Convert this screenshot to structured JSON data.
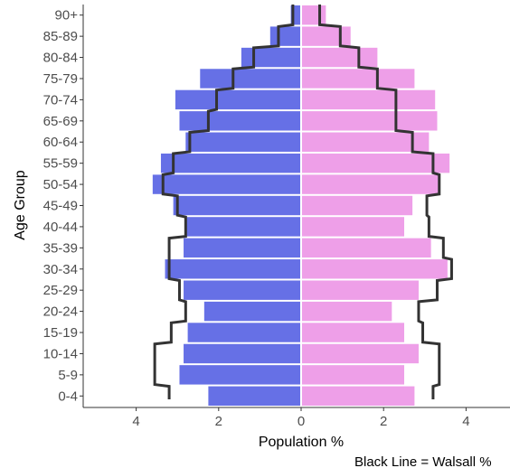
{
  "chart_data": {
    "type": "bar",
    "orientation": "horizontal",
    "categories": [
      "0-4",
      "5-9",
      "10-14",
      "15-19",
      "20-24",
      "25-29",
      "30-34",
      "35-39",
      "40-44",
      "45-49",
      "50-54",
      "55-59",
      "60-64",
      "65-69",
      "70-74",
      "75-79",
      "80-84",
      "85-89",
      "90+"
    ],
    "series": [
      {
        "side": "left",
        "color": "#6670e6",
        "values": [
          2.25,
          2.95,
          2.85,
          2.75,
          2.35,
          2.85,
          3.3,
          2.85,
          2.8,
          3.1,
          3.6,
          3.4,
          2.8,
          2.95,
          3.05,
          2.45,
          1.45,
          0.75,
          0.25
        ]
      },
      {
        "side": "right",
        "color": "#ee9fe8",
        "values": [
          2.75,
          2.5,
          2.85,
          2.5,
          2.2,
          2.85,
          3.55,
          3.15,
          2.5,
          2.7,
          3.35,
          3.6,
          3.1,
          3.3,
          3.25,
          2.75,
          1.85,
          1.2,
          0.6
        ]
      },
      {
        "type": "step",
        "color": "#333333",
        "left": [
          3.2,
          3.55,
          3.55,
          3.15,
          2.8,
          2.95,
          3.2,
          3.2,
          2.8,
          3.0,
          3.35,
          3.1,
          2.7,
          2.25,
          2.05,
          1.65,
          1.15,
          0.55,
          0.2
        ],
        "right": [
          3.2,
          3.35,
          3.35,
          2.95,
          2.85,
          3.3,
          3.65,
          3.45,
          3.1,
          3.05,
          3.35,
          3.2,
          2.7,
          2.3,
          2.3,
          1.85,
          1.4,
          0.95,
          0.45
        ]
      }
    ],
    "xticks": [
      "4",
      "2",
      "0",
      "2",
      "4"
    ],
    "xtick_values": [
      -4,
      -2,
      0,
      2,
      4
    ],
    "xlim": [
      -5.3,
      5.0
    ],
    "xlabel": "Population %",
    "ylabel": "Age Group",
    "caption": "Black Line = Walsall %",
    "grid": false
  }
}
